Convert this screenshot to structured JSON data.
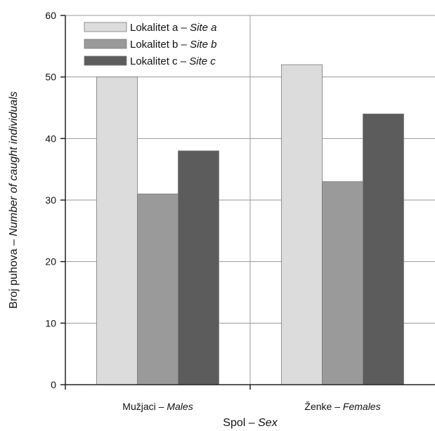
{
  "chart_data": {
    "type": "bar",
    "categories": [
      {
        "main": "Mužjaci",
        "sep": " – ",
        "italic": "Males"
      },
      {
        "main": "Ženke",
        "sep": " – ",
        "italic": "Females"
      }
    ],
    "series": [
      {
        "name_main": "Lokalitet a",
        "sep": " – ",
        "name_italic": "Site a",
        "values": [
          50,
          52
        ],
        "color": "#dcdcdc"
      },
      {
        "name_main": "Lokalitet b",
        "sep": " – ",
        "name_italic": "Site b",
        "values": [
          31,
          33
        ],
        "color": "#9a9a9a"
      },
      {
        "name_main": "Lokalitet c",
        "sep": " – ",
        "name_italic": "Site c",
        "values": [
          38,
          44
        ],
        "color": "#5c5c5c"
      }
    ],
    "xlabel": {
      "main": "Spol",
      "sep": " – ",
      "italic": "Sex"
    },
    "ylabel": {
      "main": "Broj puhova",
      "sep": " – ",
      "italic": "Number of caught individuals"
    },
    "ylim": [
      0,
      60
    ],
    "yticks": [
      0,
      10,
      20,
      30,
      40,
      50,
      60
    ],
    "grid": true,
    "legend_position": "top-left"
  }
}
